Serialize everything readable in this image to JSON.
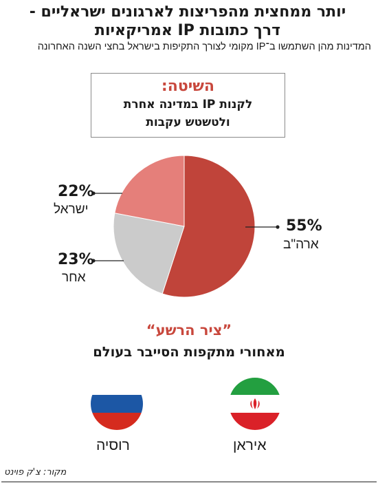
{
  "headline": {
    "line1": "יותר ממחצית מהפריצות לארגונים ישראליים -",
    "line2": "דרך כתובות IP אמריקאיות"
  },
  "subtitle": "המדינות מהן השתמשו ב־IP מקומי לצורך התקיפות בישראל בחצי השנה האחרונה",
  "method": {
    "label": "השיטה:",
    "line1": "לקנות IP במדינה אחרת",
    "line2": "ולטשטש עקבות"
  },
  "chart_data": {
    "type": "pie",
    "title": "",
    "slices": [
      {
        "label": "ארה\"ב",
        "value": 55,
        "value_label": "55%",
        "color": "#c0443a"
      },
      {
        "label": "אחר",
        "value": 23,
        "value_label": "23%",
        "color": "#cbcbcb"
      },
      {
        "label": "ישראל",
        "value": 22,
        "value_label": "22%",
        "color": "#e57f7a"
      }
    ]
  },
  "tagline": "”ציר הרשע“",
  "tagline_sub": "מאחורי מתקפות הסייבר בעולם",
  "flags": [
    {
      "name": "איראן",
      "icon": "iran-flag",
      "colors": [
        "#239f40",
        "#ffffff",
        "#da2128"
      ],
      "emblem_color": "#da2128"
    },
    {
      "name": "רוסיה",
      "icon": "russia-flag",
      "colors": [
        "#ffffff",
        "#1c57a5",
        "#d52b1e"
      ]
    }
  ],
  "source": "מקור: צ'ק פוינט"
}
